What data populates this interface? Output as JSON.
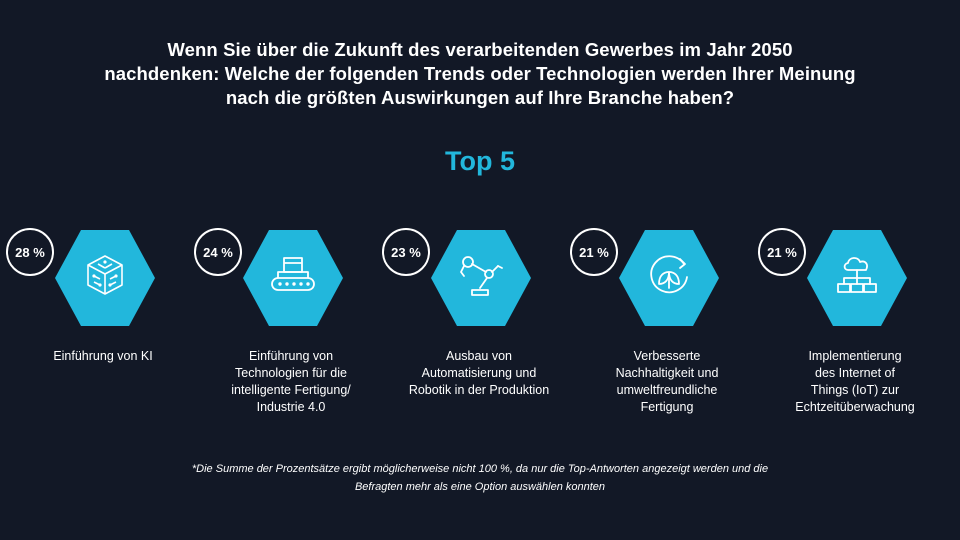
{
  "question": {
    "lines": [
      "Wenn Sie über die Zukunft des verarbeitenden Gewerbes im Jahr 2050",
      "nachdenken: Welche der folgenden Trends oder Technologien werden Ihrer Meinung",
      "nach die größten Auswirkungen auf Ihre Branche haben?"
    ]
  },
  "heading": "Top 5",
  "colors": {
    "accent": "#22b7dc",
    "background": "#121826",
    "text": "#ffffff"
  },
  "items": [
    {
      "percent": "28 %",
      "icon": "ai-cube-icon",
      "label_lines": [
        "Einführung von KI"
      ]
    },
    {
      "percent": "24 %",
      "icon": "conveyor-box-icon",
      "label_lines": [
        "Einführung von",
        "Technologien für die",
        "intelligente Fertigung/",
        "Industrie 4.0"
      ]
    },
    {
      "percent": "23 %",
      "icon": "robot-arm-icon",
      "label_lines": [
        "Ausbau von",
        "Automatisierung und",
        "Robotik in der Produktion"
      ]
    },
    {
      "percent": "21 %",
      "icon": "recycle-leaf-icon",
      "label_lines": [
        "Verbesserte",
        "Nachhaltigkeit und",
        "umweltfreundliche",
        "Fertigung"
      ]
    },
    {
      "percent": "21 %",
      "icon": "cloud-network-icon",
      "label_lines": [
        "Implementierung",
        "des Internet of",
        "Things (IoT) zur",
        "Echtzeitüberwachung"
      ]
    }
  ],
  "footnote": {
    "lines": [
      "*Die Summe der Prozentsätze ergibt möglicherweise nicht 100 %, da nur die Top-Antworten angezeigt werden und die",
      "Befragten mehr als eine Option auswählen konnten"
    ]
  }
}
